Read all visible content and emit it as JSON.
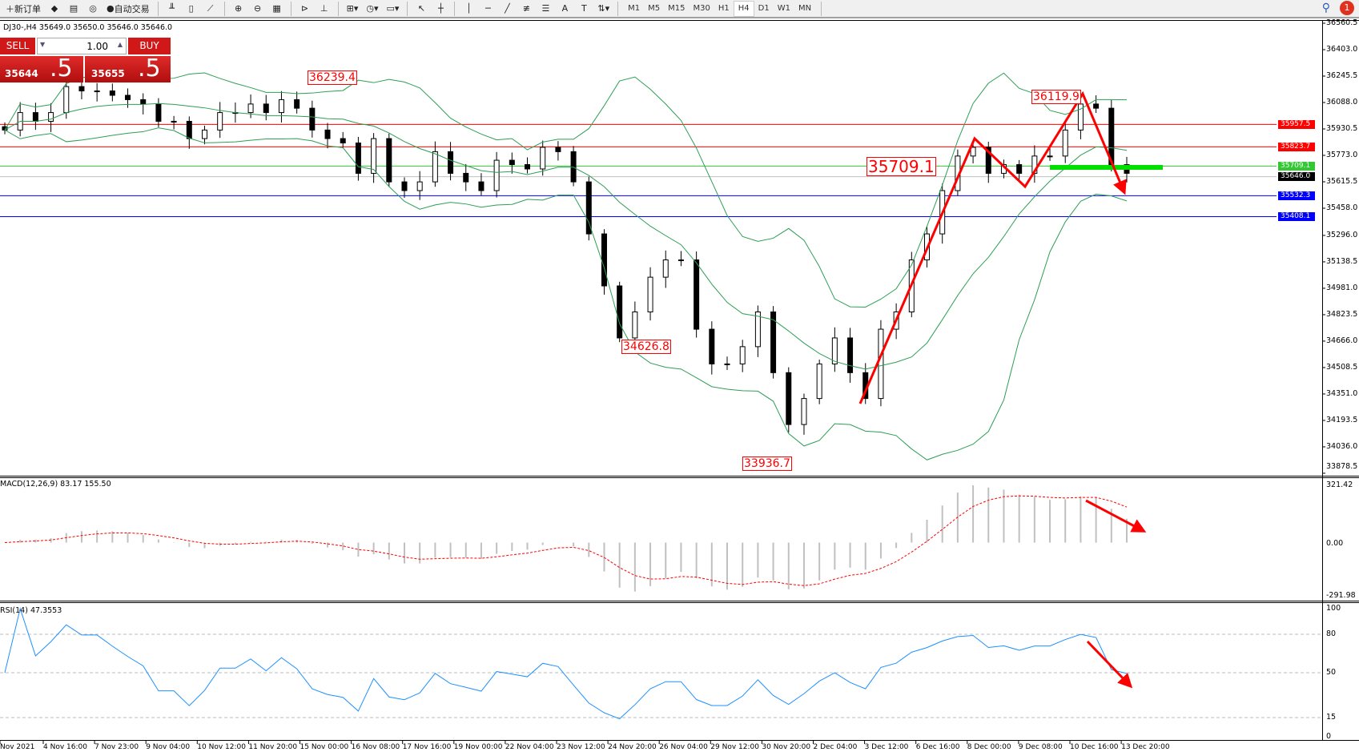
{
  "toolbar": {
    "new_order": "新订单",
    "auto_trade": "自动交易",
    "timeframes": [
      "M1",
      "M5",
      "M15",
      "M30",
      "H1",
      "H4",
      "D1",
      "W1",
      "MN"
    ],
    "active_timeframe": "H4",
    "notifications": "1",
    "icons": [
      "new-order-icon",
      "market-watch-icon",
      "navigator-icon",
      "signals-icon",
      "auto-trade-icon",
      "bar-chart-icon",
      "candlestick-icon",
      "line-chart-icon",
      "zoom-in-icon",
      "zoom-out-icon",
      "tile-windows-icon",
      "chart-shift-icon",
      "autoscroll-icon",
      "indicators-icon",
      "periods-icon",
      "templates-icon",
      "cursor-icon",
      "crosshair-icon",
      "vertical-line-icon",
      "horizontal-line-icon",
      "trendline-icon",
      "fibo-icon",
      "fibo-fan-icon",
      "text-icon",
      "text-label-icon",
      "arrows-icon"
    ]
  },
  "symbol_info": "DJ30-,H4  35649.0 35650.0 35646.0 35646.0",
  "trade_panel": {
    "sell": "SELL",
    "buy": "BUY",
    "lot": "1.00",
    "bid_main": "35644",
    "bid_big": ".5",
    "ask_main": "35655",
    "ask_big": ".5"
  },
  "price_axis": [
    "36560.5",
    "36403.0",
    "36245.5",
    "36088.0",
    "35930.5",
    "35773.0",
    "35615.5",
    "35458.0",
    "35296.0",
    "35138.5",
    "34981.0",
    "34823.5",
    "34666.0",
    "34508.5",
    "34351.0",
    "34193.5",
    "34036.0",
    "33878.5"
  ],
  "levels": [
    {
      "price": "35957.5",
      "color": "#ff0000"
    },
    {
      "price": "35823.7",
      "color": "#ff0000"
    },
    {
      "price": "35709.1",
      "color": "#32c832"
    },
    {
      "price": "35646.0",
      "color": "#000000"
    },
    {
      "price": "35532.3",
      "color": "#0000ff"
    },
    {
      "price": "35408.1",
      "color": "#0000ff"
    }
  ],
  "annotations": {
    "high1": "36239.4",
    "low1": "34626.8",
    "low2": "33936.7",
    "mid": "35709.1",
    "high2": "36119.9"
  },
  "chart_data": {
    "type": "candlestick",
    "ylim": [
      33878.5,
      36560.5
    ],
    "closes": [
      35924,
      36028,
      35976,
      36028,
      36183,
      36157,
      36157,
      36131,
      36105,
      36079,
      35976,
      35976,
      35873,
      35924,
      36028,
      36028,
      36079,
      36028,
      36105,
      36054,
      35924,
      35873,
      35847,
      35666,
      35873,
      35615,
      35563,
      35615,
      35795,
      35666,
      35615,
      35563,
      35744,
      35718,
      35692,
      35821,
      35795,
      35615,
      35305,
      34995,
      34685,
      34840,
      35047,
      35150,
      35150,
      34737,
      34530,
      34530,
      34633,
      34840,
      34478,
      34169,
      34324,
      34530,
      34685,
      34478,
      34324,
      34737,
      34840,
      35150,
      35305,
      35563,
      35769,
      35821,
      35666,
      35718,
      35666,
      35769,
      35769,
      35924,
      36079,
      36054,
      35718,
      35666
    ],
    "macd": {
      "label": "MACD(12,26,9) 83.17 155.50",
      "axis": [
        "321.42",
        "0.00",
        "-291.98"
      ],
      "range": [
        -291.98,
        321.42
      ]
    },
    "rsi": {
      "label": "RSI(14) 47.3553",
      "axis": [
        "100",
        "80",
        "50",
        "15",
        "0"
      ],
      "levels": [
        80,
        50,
        15
      ]
    },
    "time_labels": [
      "Nov 2021",
      "4 Nov 16:00",
      "7 Nov 23:00",
      "9 Nov 04:00",
      "10 Nov 12:00",
      "11 Nov 20:00",
      "15 Nov 00:00",
      "16 Nov 08:00",
      "17 Nov 16:00",
      "19 Nov 00:00",
      "22 Nov 04:00",
      "23 Nov 12:00",
      "24 Nov 20:00",
      "26 Nov 04:00",
      "29 Nov 12:00",
      "30 Nov 20:00",
      "2 Dec 04:00",
      "3 Dec 12:00",
      "6 Dec 16:00",
      "8 Dec 00:00",
      "9 Dec 08:00",
      "10 Dec 16:00",
      "13 Dec 20:00"
    ]
  },
  "colors": {
    "bands": "#2e9e55",
    "arrow": "#ff0000",
    "rsi": "#1e90ff",
    "macd_signal": "#ff0000",
    "macd_hist": "#c0c0c0",
    "support_bar": "#00e000"
  }
}
